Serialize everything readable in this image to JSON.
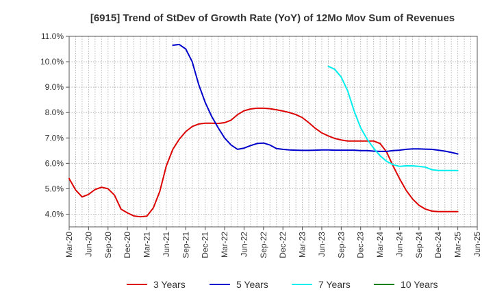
{
  "chart_data": {
    "type": "line",
    "title": "[6915]  Trend of StDev of Growth Rate (YoY) of 12Mo Mov Sum of Revenues",
    "xlabel": "",
    "ylabel": "",
    "ylim": [
      3.5,
      11.0
    ],
    "y_ticks": [
      4.0,
      5.0,
      6.0,
      7.0,
      8.0,
      9.0,
      10.0,
      11.0
    ],
    "y_tick_labels": [
      "4.0%",
      "5.0%",
      "6.0%",
      "7.0%",
      "8.0%",
      "9.0%",
      "10.0%",
      "11.0%"
    ],
    "x_range": [
      0,
      63
    ],
    "x_ticks": [
      0,
      3,
      6,
      9,
      12,
      15,
      18,
      21,
      24,
      27,
      30,
      33,
      36,
      39,
      42,
      45,
      48,
      51,
      54,
      57,
      60,
      63
    ],
    "x_tick_labels": [
      "Mar-20",
      "Jun-20",
      "Sep-20",
      "Dec-20",
      "Mar-21",
      "Jun-21",
      "Sep-21",
      "Dec-21",
      "Mar-22",
      "Jun-22",
      "Sep-22",
      "Dec-22",
      "Mar-23",
      "Jun-23",
      "Sep-23",
      "Dec-23",
      "Mar-24",
      "Jun-24",
      "Sep-24",
      "Dec-24",
      "Mar-25",
      "Jun-25"
    ],
    "grid": true,
    "legend_position": "bottom",
    "series": [
      {
        "name": "3 Years",
        "color": "#dd0000",
        "x": [
          0,
          1,
          2,
          3,
          4,
          5,
          6,
          7,
          8,
          9,
          10,
          11,
          12,
          13,
          14,
          15,
          16,
          17,
          18,
          19,
          20,
          21,
          22,
          23,
          24,
          25,
          26,
          27,
          28,
          29,
          30,
          31,
          32,
          33,
          34,
          35,
          36,
          37,
          38,
          39,
          40,
          41,
          42,
          43,
          44,
          45,
          46,
          47,
          48,
          49,
          50,
          51,
          52,
          53,
          54,
          55,
          56,
          57,
          58,
          59,
          60
        ],
        "y": [
          5.4,
          4.95,
          4.68,
          4.78,
          4.97,
          5.06,
          5.0,
          4.75,
          4.2,
          4.05,
          3.93,
          3.9,
          3.92,
          4.25,
          4.9,
          5.9,
          6.55,
          6.95,
          7.25,
          7.45,
          7.55,
          7.58,
          7.58,
          7.57,
          7.6,
          7.7,
          7.92,
          8.07,
          8.14,
          8.17,
          8.17,
          8.15,
          8.11,
          8.06,
          8.0,
          7.92,
          7.8,
          7.6,
          7.38,
          7.2,
          7.08,
          6.98,
          6.92,
          6.88,
          6.88,
          6.88,
          6.88,
          6.88,
          6.78,
          6.45,
          5.9,
          5.4,
          4.95,
          4.6,
          4.35,
          4.2,
          4.12,
          4.1,
          4.1,
          4.1,
          4.1
        ]
      },
      {
        "name": "5 Years",
        "color": "#0000cc",
        "x": [
          16,
          17,
          18,
          19,
          20,
          21,
          22,
          23,
          24,
          25,
          26,
          27,
          28,
          29,
          30,
          31,
          32,
          33,
          34,
          35,
          36,
          37,
          38,
          39,
          40,
          41,
          42,
          43,
          44,
          45,
          46,
          47,
          48,
          49,
          50,
          51,
          52,
          53,
          54,
          55,
          56,
          57,
          58,
          59,
          60
        ],
        "y": [
          10.65,
          10.68,
          10.5,
          10.0,
          9.1,
          8.4,
          7.85,
          7.4,
          7.0,
          6.72,
          6.55,
          6.6,
          6.7,
          6.78,
          6.8,
          6.72,
          6.58,
          6.55,
          6.53,
          6.52,
          6.51,
          6.51,
          6.52,
          6.53,
          6.53,
          6.52,
          6.52,
          6.52,
          6.52,
          6.5,
          6.5,
          6.48,
          6.47,
          6.47,
          6.5,
          6.52,
          6.55,
          6.57,
          6.57,
          6.56,
          6.55,
          6.52,
          6.48,
          6.43,
          6.37
        ]
      },
      {
        "name": "7 Years",
        "color": "#00eeee",
        "x": [
          40,
          41,
          42,
          43,
          44,
          45,
          46,
          47,
          48,
          49,
          50,
          51,
          52,
          53,
          54,
          55,
          56,
          57,
          58,
          59,
          60
        ],
        "y": [
          9.82,
          9.7,
          9.4,
          8.85,
          8.05,
          7.4,
          6.95,
          6.6,
          6.3,
          6.08,
          5.95,
          5.88,
          5.9,
          5.9,
          5.88,
          5.85,
          5.75,
          5.72,
          5.72,
          5.72,
          5.72
        ]
      },
      {
        "name": "10 Years",
        "color": "#008000",
        "x": [],
        "y": []
      }
    ]
  }
}
